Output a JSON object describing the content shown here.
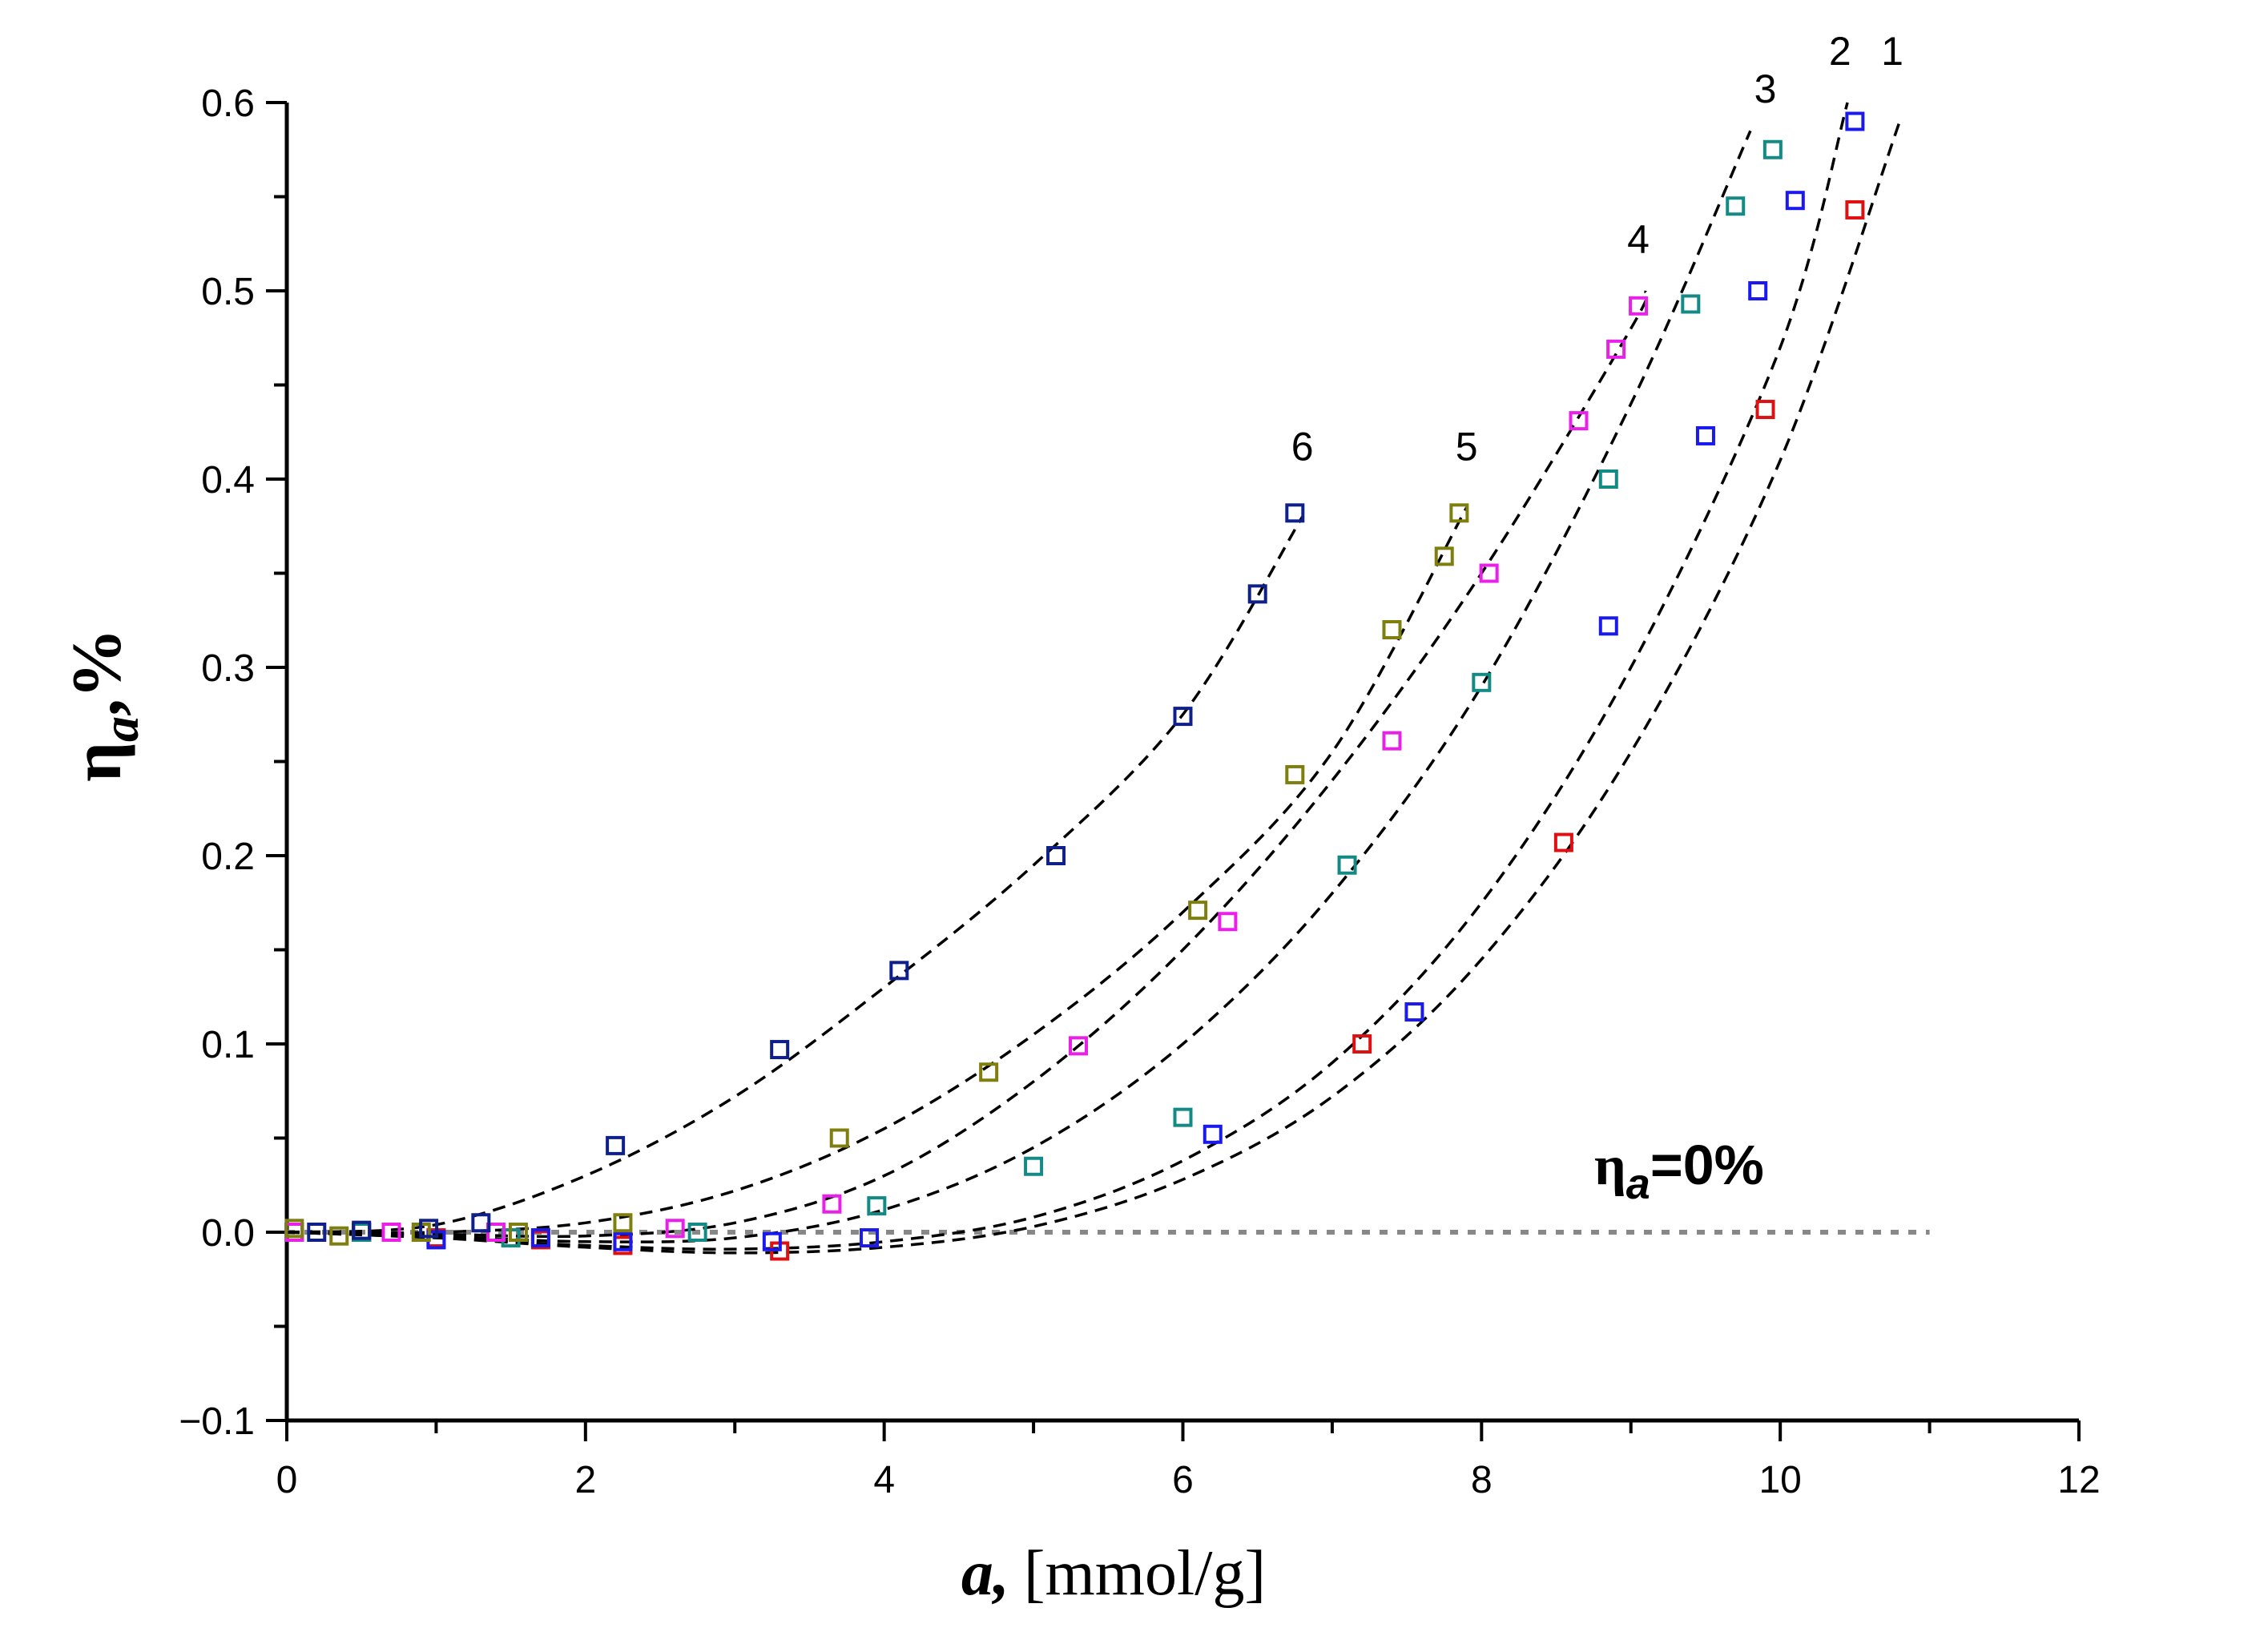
{
  "chart_data": {
    "type": "scatter",
    "title": "",
    "xlabel_var": "a,",
    "xlabel_unit": "[mmol/g]",
    "ylabel_symbol": "η",
    "ylabel_sub": "a",
    "ylabel_unit": ",%",
    "xlim": [
      0,
      12
    ],
    "ylim": [
      -0.1,
      0.6
    ],
    "x_ticks": [
      0,
      2,
      4,
      6,
      8,
      10,
      12
    ],
    "x_tick_labels": [
      "0",
      "2",
      "4",
      "6",
      "8",
      "10",
      "12"
    ],
    "y_ticks": [
      -0.1,
      0.0,
      0.1,
      0.2,
      0.3,
      0.4,
      0.5,
      0.6
    ],
    "y_tick_labels": [
      "−0.1",
      "0.0",
      "0.1",
      "0.2",
      "0.3",
      "0.4",
      "0.5",
      "0.6"
    ],
    "grid": false,
    "reference_line": {
      "y": 0.0,
      "x_range": [
        0,
        11
      ],
      "style": "dotted",
      "color": "#888888"
    },
    "annotation": {
      "symbol": "η",
      "sub": "a",
      "rest": "=0%"
    },
    "series": [
      {
        "name": "1",
        "color": "#e01010",
        "points": [
          [
            0.05,
            0.0
          ],
          [
            0.5,
            0.0
          ],
          [
            1.0,
            -0.003
          ],
          [
            1.7,
            -0.004
          ],
          [
            2.25,
            -0.007
          ],
          [
            3.3,
            -0.01
          ],
          [
            7.2,
            0.1
          ],
          [
            8.55,
            0.207
          ],
          [
            9.9,
            0.437
          ],
          [
            10.5,
            0.543
          ]
        ],
        "fit": [
          [
            0,
            0.0
          ],
          [
            1,
            -0.003
          ],
          [
            2,
            -0.008
          ],
          [
            3,
            -0.011
          ],
          [
            4,
            -0.008
          ],
          [
            5,
            0.003
          ],
          [
            6,
            0.028
          ],
          [
            7,
            0.072
          ],
          [
            8,
            0.145
          ],
          [
            9,
            0.255
          ],
          [
            10,
            0.41
          ],
          [
            10.8,
            0.59
          ]
        ],
        "label": "1",
        "label_pos": [
          10.75,
          0.62
        ]
      },
      {
        "name": "2",
        "color": "#1a1aee",
        "points": [
          [
            0.05,
            0.0
          ],
          [
            0.5,
            0.0
          ],
          [
            1.0,
            -0.004
          ],
          [
            1.7,
            -0.003
          ],
          [
            2.25,
            -0.005
          ],
          [
            3.25,
            -0.005
          ],
          [
            3.9,
            -0.003
          ],
          [
            6.2,
            0.052
          ],
          [
            7.55,
            0.117
          ],
          [
            8.85,
            0.322
          ],
          [
            9.5,
            0.423
          ],
          [
            9.85,
            0.5
          ],
          [
            10.1,
            0.548
          ],
          [
            10.5,
            0.59
          ]
        ],
        "fit": [
          [
            0,
            0.0
          ],
          [
            1,
            -0.003
          ],
          [
            2,
            -0.007
          ],
          [
            3,
            -0.009
          ],
          [
            4,
            -0.005
          ],
          [
            5,
            0.008
          ],
          [
            6,
            0.038
          ],
          [
            7,
            0.09
          ],
          [
            8,
            0.175
          ],
          [
            9,
            0.3
          ],
          [
            10,
            0.47
          ],
          [
            10.45,
            0.6
          ]
        ],
        "label": "2",
        "label_pos": [
          10.4,
          0.62
        ]
      },
      {
        "name": "3",
        "color": "#138a84",
        "points": [
          [
            0.05,
            0.0
          ],
          [
            0.5,
            0.0
          ],
          [
            1.5,
            -0.003
          ],
          [
            2.75,
            0.0
          ],
          [
            3.95,
            0.014
          ],
          [
            5.0,
            0.035
          ],
          [
            6.0,
            0.061
          ],
          [
            7.1,
            0.195
          ],
          [
            8.0,
            0.292
          ],
          [
            8.85,
            0.4
          ],
          [
            9.4,
            0.493
          ],
          [
            9.7,
            0.545
          ],
          [
            9.95,
            0.575
          ]
        ],
        "fit": [
          [
            0,
            0.0
          ],
          [
            1,
            -0.002
          ],
          [
            2,
            -0.005
          ],
          [
            3,
            -0.003
          ],
          [
            4,
            0.012
          ],
          [
            5,
            0.045
          ],
          [
            6,
            0.1
          ],
          [
            7,
            0.18
          ],
          [
            8,
            0.29
          ],
          [
            9,
            0.44
          ],
          [
            9.8,
            0.585
          ]
        ],
        "label": "3",
        "label_pos": [
          9.9,
          0.6
        ]
      },
      {
        "name": "4",
        "color": "#e820e8",
        "points": [
          [
            0.05,
            0.0
          ],
          [
            0.7,
            0.0
          ],
          [
            1.4,
            0.0
          ],
          [
            2.6,
            0.002
          ],
          [
            3.65,
            0.015
          ],
          [
            5.3,
            0.099
          ],
          [
            6.3,
            0.165
          ],
          [
            7.4,
            0.261
          ],
          [
            8.05,
            0.35
          ],
          [
            8.65,
            0.431
          ],
          [
            8.9,
            0.469
          ],
          [
            9.05,
            0.492
          ]
        ],
        "fit": [
          [
            0,
            0.0
          ],
          [
            1,
            -0.001
          ],
          [
            2,
            -0.002
          ],
          [
            3,
            0.005
          ],
          [
            4,
            0.03
          ],
          [
            5,
            0.08
          ],
          [
            6,
            0.15
          ],
          [
            7,
            0.24
          ],
          [
            8,
            0.35
          ],
          [
            9,
            0.48
          ],
          [
            9.1,
            0.5
          ]
        ],
        "label": "4",
        "label_pos": [
          9.05,
          0.52
        ]
      },
      {
        "name": "5",
        "color": "#7f7f10",
        "points": [
          [
            0.05,
            0.002
          ],
          [
            0.35,
            -0.002
          ],
          [
            0.9,
            0.0
          ],
          [
            1.55,
            0.0
          ],
          [
            2.25,
            0.005
          ],
          [
            3.7,
            0.05
          ],
          [
            4.7,
            0.085
          ],
          [
            6.1,
            0.171
          ],
          [
            6.75,
            0.243
          ],
          [
            7.4,
            0.32
          ],
          [
            7.75,
            0.359
          ],
          [
            7.85,
            0.382
          ]
        ],
        "fit": [
          [
            0,
            0.0
          ],
          [
            1,
            0.0
          ],
          [
            2,
            0.005
          ],
          [
            3,
            0.022
          ],
          [
            4,
            0.055
          ],
          [
            5,
            0.105
          ],
          [
            6,
            0.17
          ],
          [
            7,
            0.255
          ],
          [
            7.9,
            0.385
          ]
        ],
        "label": "5",
        "label_pos": [
          7.9,
          0.41
        ]
      },
      {
        "name": "6",
        "color": "#10208a",
        "points": [
          [
            0.2,
            0.0
          ],
          [
            0.5,
            0.001
          ],
          [
            0.95,
            0.002
          ],
          [
            1.3,
            0.005
          ],
          [
            2.2,
            0.046
          ],
          [
            3.3,
            0.097
          ],
          [
            4.1,
            0.139
          ],
          [
            5.15,
            0.2
          ],
          [
            6.0,
            0.274
          ],
          [
            6.5,
            0.339
          ],
          [
            6.75,
            0.382
          ]
        ],
        "fit": [
          [
            0,
            0.0
          ],
          [
            1,
            0.004
          ],
          [
            2,
            0.03
          ],
          [
            3,
            0.072
          ],
          [
            4,
            0.13
          ],
          [
            5,
            0.195
          ],
          [
            6,
            0.275
          ],
          [
            6.8,
            0.38
          ]
        ],
        "label": "6",
        "label_pos": [
          6.8,
          0.41
        ]
      }
    ]
  }
}
